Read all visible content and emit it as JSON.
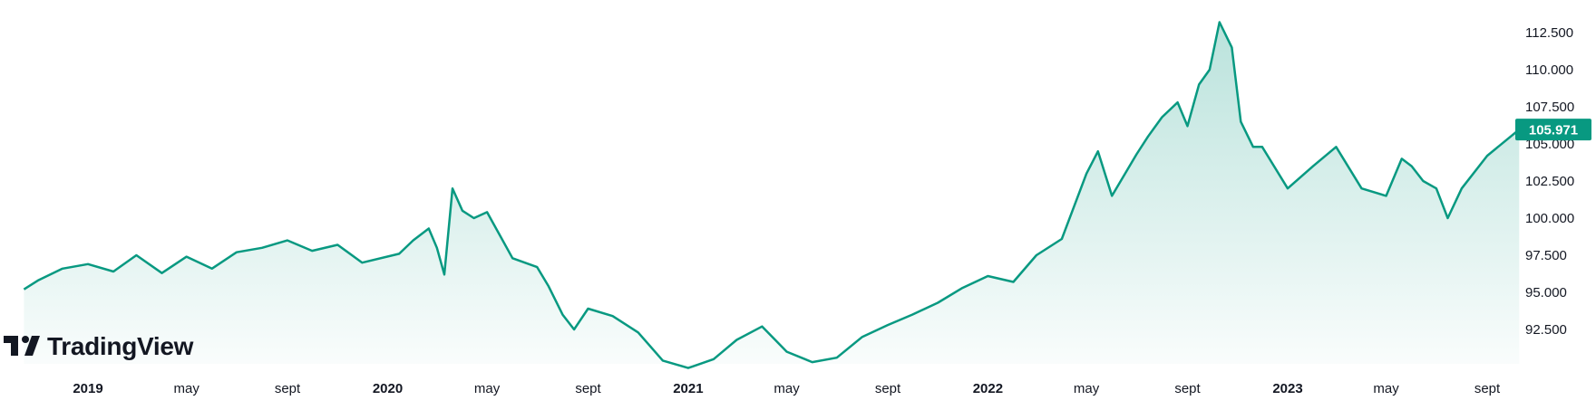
{
  "chart_data": {
    "type": "area",
    "title": "",
    "xlabel": "",
    "ylabel": "",
    "ylim": [
      89.5,
      114.2
    ],
    "yticks": [
      "112.500",
      "110.000",
      "107.500",
      "105.000",
      "102.500",
      "100.000",
      "97.500",
      "95.000",
      "92.500"
    ],
    "xticks": [
      {
        "label": "2019",
        "date": "2019-01-01",
        "bold": true
      },
      {
        "label": "may",
        "date": "2019-05-01",
        "bold": false
      },
      {
        "label": "sept",
        "date": "2019-09-01",
        "bold": false
      },
      {
        "label": "2020",
        "date": "2020-01-01",
        "bold": true
      },
      {
        "label": "may",
        "date": "2020-05-01",
        "bold": false
      },
      {
        "label": "sept",
        "date": "2020-09-01",
        "bold": false
      },
      {
        "label": "2021",
        "date": "2021-01-01",
        "bold": true
      },
      {
        "label": "may",
        "date": "2021-05-01",
        "bold": false
      },
      {
        "label": "sept",
        "date": "2021-09-01",
        "bold": false
      },
      {
        "label": "2022",
        "date": "2022-01-01",
        "bold": true
      },
      {
        "label": "may",
        "date": "2022-05-01",
        "bold": false
      },
      {
        "label": "sept",
        "date": "2022-09-01",
        "bold": false
      },
      {
        "label": "2023",
        "date": "2023-01-01",
        "bold": true
      },
      {
        "label": "may",
        "date": "2023-05-01",
        "bold": false
      },
      {
        "label": "sept",
        "date": "2023-09-01",
        "bold": false
      }
    ],
    "grid": false,
    "legend": "none",
    "series": [
      {
        "x": [
          "2018-10-15",
          "2018-11-01",
          "2018-12-01",
          "2019-01-01",
          "2019-02-01",
          "2019-03-01",
          "2019-04-01",
          "2019-05-01",
          "2019-06-01",
          "2019-07-01",
          "2019-08-01",
          "2019-09-01",
          "2019-10-01",
          "2019-11-01",
          "2019-12-01",
          "2020-01-15",
          "2020-02-01",
          "2020-02-20",
          "2020-03-01",
          "2020-03-10",
          "2020-03-20",
          "2020-04-01",
          "2020-04-15",
          "2020-05-01",
          "2020-05-15",
          "2020-06-01",
          "2020-07-01",
          "2020-07-15",
          "2020-08-01",
          "2020-08-15",
          "2020-09-01",
          "2020-10-01",
          "2020-11-01",
          "2020-12-01",
          "2021-01-01",
          "2021-02-01",
          "2021-03-01",
          "2021-04-01",
          "2021-05-01",
          "2021-06-01",
          "2021-07-01",
          "2021-08-01",
          "2021-09-01",
          "2021-10-01",
          "2021-11-01",
          "2021-12-01",
          "2022-01-01",
          "2022-02-01",
          "2022-03-01",
          "2022-04-01",
          "2022-05-01",
          "2022-05-15",
          "2022-06-01",
          "2022-07-01",
          "2022-07-15",
          "2022-08-01",
          "2022-08-20",
          "2022-09-01",
          "2022-09-15",
          "2022-09-28",
          "2022-10-10",
          "2022-10-25",
          "2022-11-05",
          "2022-11-20",
          "2022-12-01",
          "2023-01-01",
          "2023-02-01",
          "2023-03-01",
          "2023-04-01",
          "2023-05-01",
          "2023-05-20",
          "2023-06-01",
          "2023-06-15",
          "2023-07-01",
          "2023-07-15",
          "2023-08-01",
          "2023-09-01",
          "2023-10-10"
        ],
        "values": [
          95.2,
          95.8,
          96.6,
          96.9,
          96.4,
          97.5,
          96.3,
          97.4,
          96.6,
          97.7,
          98.0,
          98.5,
          97.8,
          98.2,
          97.0,
          97.6,
          98.5,
          99.3,
          98.0,
          96.2,
          102.0,
          100.5,
          100.0,
          100.4,
          99.0,
          97.3,
          96.7,
          95.4,
          93.5,
          92.5,
          93.9,
          93.4,
          92.3,
          90.4,
          89.9,
          90.5,
          91.8,
          92.7,
          91.0,
          90.3,
          90.6,
          92.0,
          92.8,
          93.5,
          94.3,
          95.3,
          96.1,
          95.7,
          97.5,
          98.6,
          103.0,
          104.5,
          101.5,
          104.3,
          105.5,
          106.8,
          107.8,
          106.2,
          109.0,
          110.0,
          113.2,
          111.5,
          106.5,
          104.8,
          104.8,
          102.0,
          103.5,
          104.8,
          102.0,
          101.5,
          104.0,
          103.5,
          102.5,
          102.0,
          100.0,
          102.0,
          104.2,
          105.971
        ]
      }
    ],
    "last_value_label": "105.971",
    "colors": {
      "line": "#089981",
      "fill_top": "#089981",
      "label_bg": "#089981",
      "label_text": "#ffffff",
      "axis_text": "#131722"
    }
  },
  "watermark": {
    "text": "TradingView",
    "icon": "tradingview-logo-icon"
  }
}
